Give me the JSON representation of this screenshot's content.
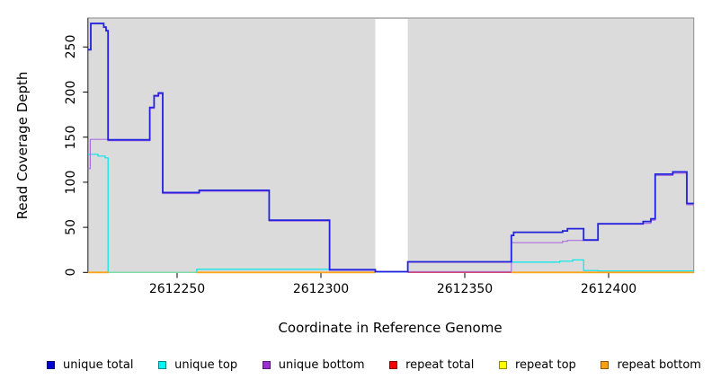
{
  "figure": {
    "background": "#FFFFFF",
    "plot_background": "#DBDBDB",
    "plot_border_color": "#8A8A8A",
    "axis_color": "#333333"
  },
  "chart_data": {
    "type": "line",
    "subtype": "step-coverage-plot",
    "title": "",
    "xlabel": "Coordinate in Reference Genome",
    "ylabel": "Read Coverage Depth",
    "xlim": [
      2612219,
      2612429.6
    ],
    "ylim": [
      0,
      282
    ],
    "grid": false,
    "legend_position": "bottom",
    "x_ticks": [
      2612250,
      2612300,
      2612350,
      2612400
    ],
    "x_tick_labels": [
      "2612250",
      "2612300",
      "2612350",
      "2612400"
    ],
    "y_ticks": [
      0,
      50,
      100,
      150,
      200,
      250
    ],
    "y_tick_labels": [
      "0",
      "50",
      "100",
      "150",
      "200",
      "250"
    ],
    "gap_region": {
      "start": 2612318.9,
      "end": 2612330.2,
      "color": "#FFFFFF"
    },
    "series": [
      {
        "id": "unique-total",
        "name": "unique total",
        "color": "#2222DF",
        "legend_color": "#0000D5",
        "line_width": 1.8,
        "points": [
          [
            2612219.0,
            247
          ],
          [
            2612220.0,
            276
          ],
          [
            2612224.5,
            272
          ],
          [
            2612225.3,
            268
          ],
          [
            2612226.0,
            147
          ],
          [
            2612240.5,
            183
          ],
          [
            2612242.0,
            196
          ],
          [
            2612243.5,
            199
          ],
          [
            2612245.0,
            88.5
          ],
          [
            2612257.7,
            91
          ],
          [
            2612282.0,
            58
          ],
          [
            2612303.0,
            3
          ],
          [
            2612318.9,
            0.8
          ],
          [
            2612330.2,
            11.8
          ],
          [
            2612366.2,
            41
          ],
          [
            2612367.0,
            44.5
          ],
          [
            2612384.0,
            46
          ],
          [
            2612385.7,
            48.5
          ],
          [
            2612391.3,
            36
          ],
          [
            2612396.3,
            54
          ],
          [
            2612412.0,
            56.5
          ],
          [
            2612414.7,
            59.5
          ],
          [
            2612416.2,
            109
          ],
          [
            2612422.3,
            111.5
          ],
          [
            2612427.2,
            76.5
          ],
          [
            2612429.6,
            76.5
          ]
        ]
      },
      {
        "id": "unique-top",
        "name": "unique top",
        "color": "#00E8E8",
        "legend_color": "#00F5F5",
        "line_width": 1.2,
        "points": [
          [
            2612219.0,
            131
          ],
          [
            2612222.5,
            129
          ],
          [
            2612225.0,
            127
          ],
          [
            2612226.0,
            0
          ],
          [
            2612256.8,
            3.4
          ],
          [
            2612303.0,
            2.9
          ],
          [
            2612318.9,
            0.5
          ],
          [
            2612330.2,
            11.4
          ],
          [
            2612383.0,
            12.5
          ],
          [
            2612387.5,
            13.8
          ],
          [
            2612391.3,
            2.1
          ],
          [
            2612396.3,
            1.6
          ],
          [
            2612429.6,
            1.6
          ]
        ]
      },
      {
        "id": "unique-bottom",
        "name": "unique bottom",
        "color": "#AC6FDE",
        "legend_color": "#9930D0",
        "line_width": 1.2,
        "points": [
          [
            2612219.0,
            115
          ],
          [
            2612219.8,
            147.5
          ],
          [
            2612226.0,
            146
          ],
          [
            2612240.5,
            182
          ],
          [
            2612242.0,
            195
          ],
          [
            2612243.5,
            198
          ],
          [
            2612245.0,
            87.5
          ],
          [
            2612257.7,
            90
          ],
          [
            2612282.0,
            57
          ],
          [
            2612303.0,
            2.4
          ],
          [
            2612318.9,
            0.8
          ],
          [
            2612366.2,
            33
          ],
          [
            2612384.0,
            34.5
          ],
          [
            2612385.7,
            35.5
          ],
          [
            2612396.3,
            53.5
          ],
          [
            2612412.0,
            54.5
          ],
          [
            2612414.7,
            58
          ],
          [
            2612416.2,
            107.5
          ],
          [
            2612422.3,
            110
          ],
          [
            2612427.2,
            75
          ],
          [
            2612429.6,
            75
          ]
        ]
      },
      {
        "id": "repeat-total",
        "name": "repeat total",
        "color": "#D04A73",
        "legend_color": "#F40000",
        "line_width": 1.2,
        "points": [
          [
            2612219.0,
            0
          ],
          [
            2612330.2,
            11.3
          ],
          [
            2612366.2,
            0
          ],
          [
            2612429.6,
            0
          ]
        ]
      },
      {
        "id": "repeat-top",
        "name": "repeat top",
        "color": "#FFFF00",
        "legend_color": "#FFFF00",
        "line_width": 1.2,
        "points": [
          [
            2612219.0,
            0
          ],
          [
            2612429.6,
            0
          ]
        ]
      },
      {
        "id": "repeat-bottom",
        "name": "repeat bottom",
        "color": "#FFA41B",
        "legend_color": "#FFA010",
        "line_width": 1.8,
        "points": [
          [
            2612219.0,
            0
          ],
          [
            2612429.6,
            0
          ]
        ]
      }
    ],
    "visible_overlays": [
      {
        "id": "zero-orange-1",
        "color": "#FFA41B",
        "value": 0,
        "x1": 2612219.0,
        "x2": 2612226.2,
        "width": 1.8
      },
      {
        "id": "zero-green",
        "color": "#84DAA4",
        "value": 0,
        "x1": 2612226.2,
        "x2": 2612256.8,
        "width": 1.4
      },
      {
        "id": "zero-orange-2",
        "color": "#FFA41B",
        "value": 0,
        "x1": 2612256.8,
        "x2": 2612318.9,
        "width": 1.8
      },
      {
        "id": "zero-red",
        "color": "#D04A73",
        "value": 0,
        "x1": 2612330.2,
        "x2": 2612366.2,
        "width": 1.4
      },
      {
        "id": "red-fringe",
        "color": "#D04A73",
        "value": 11.3,
        "x1": 2612330.2,
        "x2": 2612366.2,
        "width": 1.2
      },
      {
        "id": "zero-orange-3",
        "color": "#FFA41B",
        "value": 0,
        "x1": 2612366.2,
        "x2": 2612429.6,
        "width": 1.8
      }
    ],
    "legend": [
      {
        "id": "unique-total",
        "label": "unique total",
        "color": "#0000D5"
      },
      {
        "id": "unique-top",
        "label": "unique top",
        "color": "#00F5F5"
      },
      {
        "id": "unique-bottom",
        "label": "unique bottom",
        "color": "#9930D0"
      },
      {
        "id": "repeat-total",
        "label": "repeat total",
        "color": "#F40000"
      },
      {
        "id": "repeat-top",
        "label": "repeat top",
        "color": "#FFFF00"
      },
      {
        "id": "repeat-bottom",
        "label": "repeat bottom",
        "color": "#FFA010"
      }
    ]
  }
}
